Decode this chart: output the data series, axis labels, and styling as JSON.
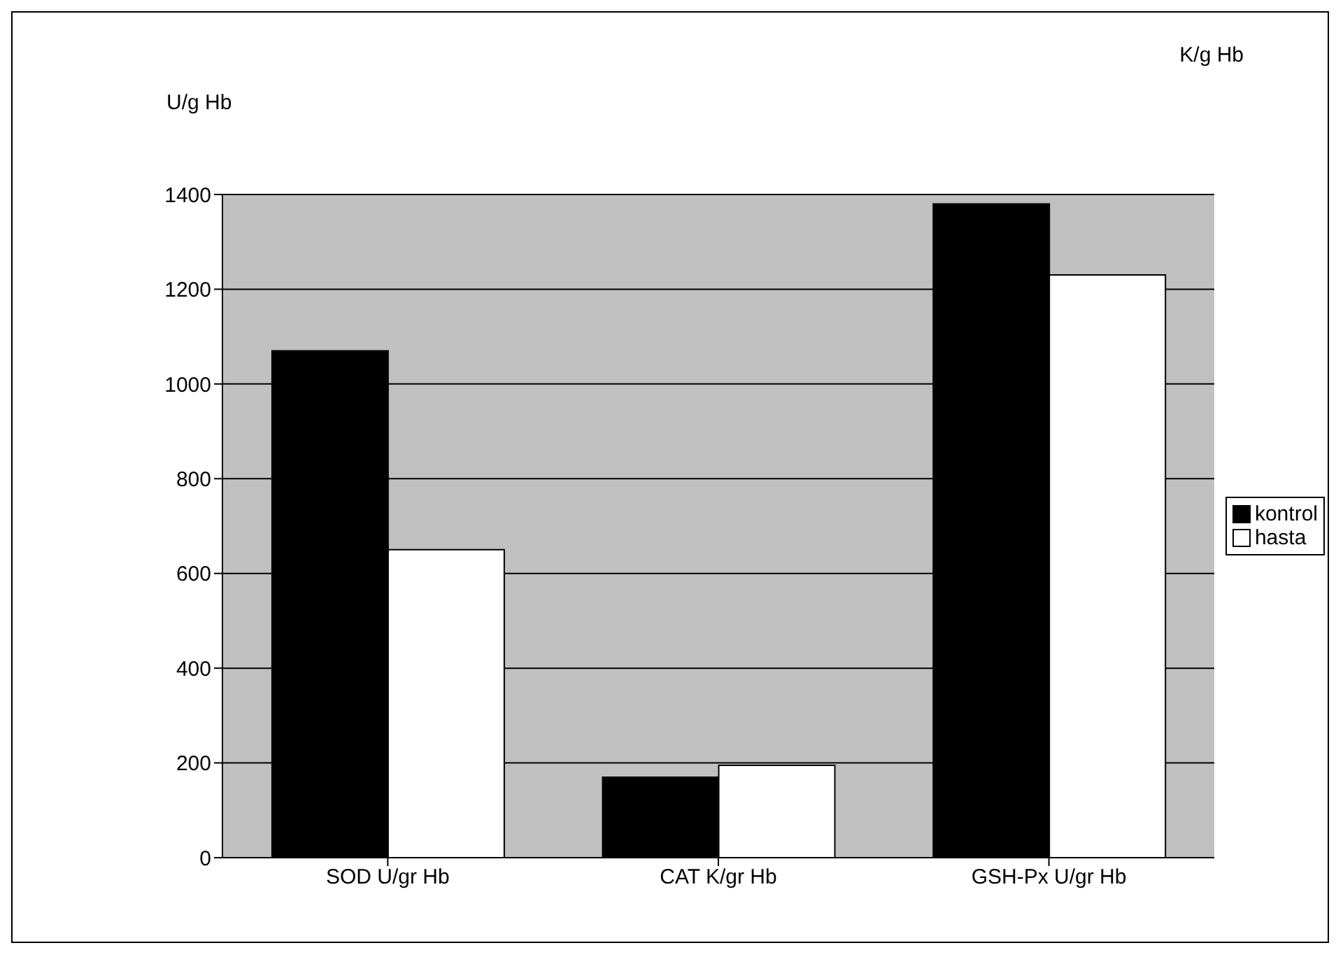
{
  "chart_data": {
    "type": "bar",
    "ylabel": "U/g Hb",
    "annotations": [
      "K/g Hb"
    ],
    "categories": [
      "SOD U/gr Hb",
      "CAT K/gr Hb",
      "GSH-Px U/gr Hb"
    ],
    "series": [
      {
        "name": "kontrol",
        "color": "#000000",
        "values": [
          1070,
          170,
          1380
        ]
      },
      {
        "name": "hasta",
        "color": "#ffffff",
        "values": [
          650,
          195,
          1230
        ]
      }
    ],
    "ylim": [
      0,
      1400
    ],
    "yticks": [
      0,
      200,
      400,
      600,
      800,
      1000,
      1200,
      1400
    ],
    "grid": "y",
    "legend": "right"
  }
}
